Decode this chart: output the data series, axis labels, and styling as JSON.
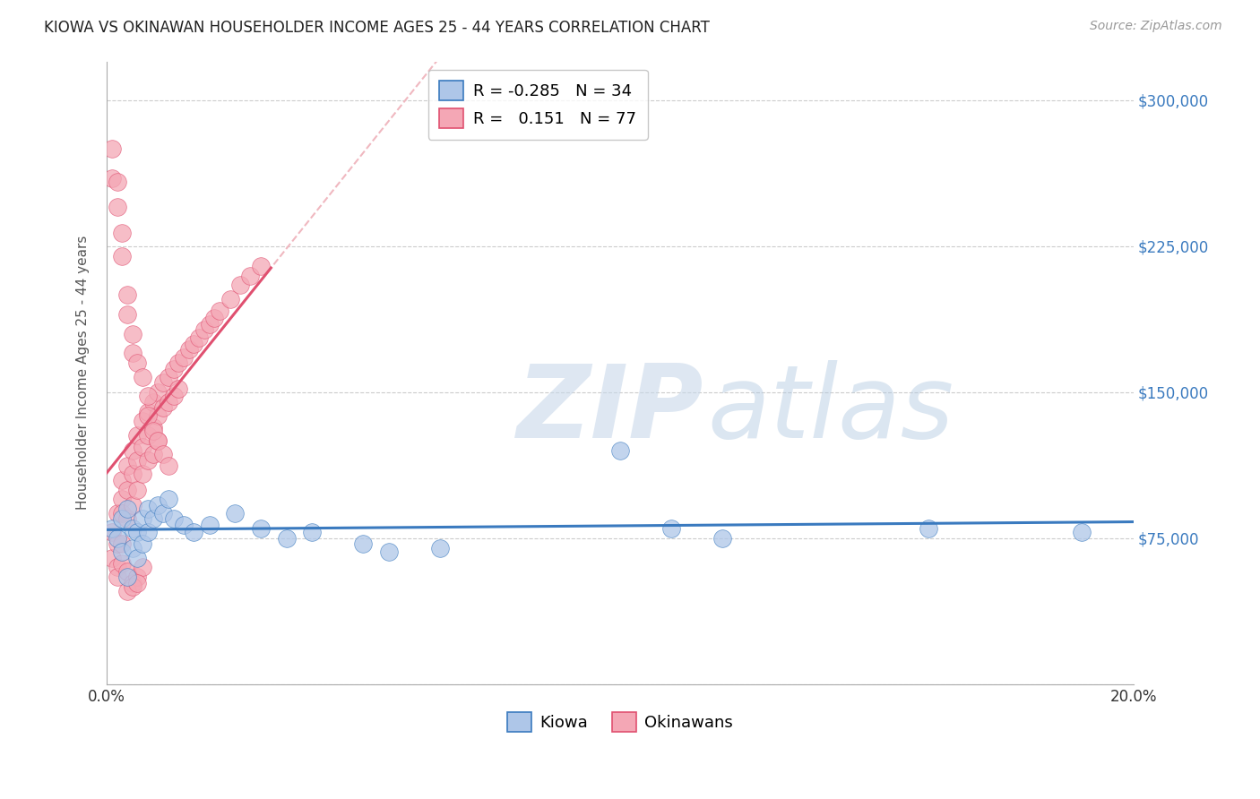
{
  "title": "KIOWA VS OKINAWAN HOUSEHOLDER INCOME AGES 25 - 44 YEARS CORRELATION CHART",
  "source": "Source: ZipAtlas.com",
  "ylabel": "Householder Income Ages 25 - 44 years",
  "x_min": 0.0,
  "x_max": 0.2,
  "y_min": 0,
  "y_max": 320000,
  "y_ticks": [
    0,
    75000,
    150000,
    225000,
    300000
  ],
  "x_ticks": [
    0.0,
    0.025,
    0.05,
    0.075,
    0.1,
    0.125,
    0.15,
    0.175,
    0.2
  ],
  "kiowa_color": "#aec6e8",
  "okinawan_color": "#f4a7b5",
  "kiowa_line_color": "#3a7abf",
  "okinawan_line_color": "#e05070",
  "okinawan_dashed_color": "#f0b8c0",
  "grid_color": "#cccccc",
  "background_color": "#ffffff",
  "legend_kiowa_R": "-0.285",
  "legend_kiowa_N": "34",
  "legend_okinawan_R": "0.151",
  "legend_okinawan_N": "77",
  "kiowa_x": [
    0.001,
    0.002,
    0.003,
    0.003,
    0.004,
    0.004,
    0.005,
    0.005,
    0.006,
    0.006,
    0.007,
    0.007,
    0.008,
    0.008,
    0.009,
    0.01,
    0.011,
    0.012,
    0.013,
    0.015,
    0.017,
    0.02,
    0.025,
    0.03,
    0.035,
    0.04,
    0.05,
    0.055,
    0.065,
    0.1,
    0.11,
    0.12,
    0.16,
    0.19
  ],
  "kiowa_y": [
    80000,
    75000,
    85000,
    68000,
    90000,
    55000,
    80000,
    70000,
    78000,
    65000,
    85000,
    72000,
    90000,
    78000,
    85000,
    92000,
    88000,
    95000,
    85000,
    82000,
    78000,
    82000,
    88000,
    80000,
    75000,
    78000,
    72000,
    68000,
    70000,
    120000,
    80000,
    75000,
    80000,
    78000
  ],
  "okinawan_x": [
    0.001,
    0.001,
    0.002,
    0.002,
    0.002,
    0.003,
    0.003,
    0.003,
    0.003,
    0.004,
    0.004,
    0.004,
    0.005,
    0.005,
    0.005,
    0.006,
    0.006,
    0.006,
    0.007,
    0.007,
    0.007,
    0.008,
    0.008,
    0.008,
    0.009,
    0.009,
    0.009,
    0.01,
    0.01,
    0.01,
    0.011,
    0.011,
    0.012,
    0.012,
    0.013,
    0.013,
    0.014,
    0.014,
    0.015,
    0.016,
    0.017,
    0.018,
    0.019,
    0.02,
    0.021,
    0.022,
    0.024,
    0.026,
    0.028,
    0.03,
    0.001,
    0.001,
    0.002,
    0.002,
    0.003,
    0.003,
    0.004,
    0.004,
    0.005,
    0.005,
    0.006,
    0.007,
    0.008,
    0.008,
    0.009,
    0.01,
    0.011,
    0.012,
    0.002,
    0.003,
    0.004,
    0.005,
    0.006,
    0.007,
    0.004,
    0.005,
    0.006
  ],
  "okinawan_y": [
    78000,
    65000,
    88000,
    72000,
    60000,
    95000,
    105000,
    88000,
    72000,
    112000,
    100000,
    85000,
    120000,
    108000,
    92000,
    128000,
    115000,
    100000,
    135000,
    122000,
    108000,
    140000,
    128000,
    115000,
    145000,
    132000,
    118000,
    150000,
    138000,
    125000,
    155000,
    142000,
    158000,
    145000,
    162000,
    148000,
    165000,
    152000,
    168000,
    172000,
    175000,
    178000,
    182000,
    185000,
    188000,
    192000,
    198000,
    205000,
    210000,
    215000,
    275000,
    260000,
    258000,
    245000,
    232000,
    220000,
    200000,
    190000,
    180000,
    170000,
    165000,
    158000,
    148000,
    138000,
    130000,
    125000,
    118000,
    112000,
    55000,
    62000,
    58000,
    52000,
    55000,
    60000,
    48000,
    50000,
    52000
  ]
}
